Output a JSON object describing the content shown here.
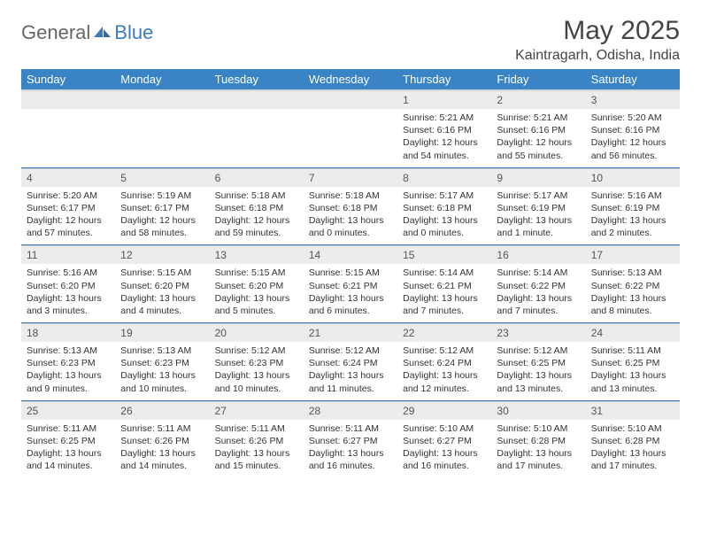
{
  "logo": {
    "part1": "General",
    "part2": "Blue"
  },
  "title": "May 2025",
  "location": "Kaintragarh, Odisha, India",
  "colors": {
    "header_bg": "#3a84c5",
    "header_text": "#ffffff",
    "daynum_bg": "#ececec",
    "separator": "#3a7cbf",
    "body_text": "#333333",
    "logo_gray": "#666666",
    "logo_blue": "#3a7cbf"
  },
  "weekdays": [
    "Sunday",
    "Monday",
    "Tuesday",
    "Wednesday",
    "Thursday",
    "Friday",
    "Saturday"
  ],
  "weeks": [
    {
      "nums": [
        "",
        "",
        "",
        "",
        "1",
        "2",
        "3"
      ],
      "cells": [
        null,
        null,
        null,
        null,
        {
          "sunrise": "5:21 AM",
          "sunset": "6:16 PM",
          "daylight": "12 hours and 54 minutes."
        },
        {
          "sunrise": "5:21 AM",
          "sunset": "6:16 PM",
          "daylight": "12 hours and 55 minutes."
        },
        {
          "sunrise": "5:20 AM",
          "sunset": "6:16 PM",
          "daylight": "12 hours and 56 minutes."
        }
      ]
    },
    {
      "nums": [
        "4",
        "5",
        "6",
        "7",
        "8",
        "9",
        "10"
      ],
      "cells": [
        {
          "sunrise": "5:20 AM",
          "sunset": "6:17 PM",
          "daylight": "12 hours and 57 minutes."
        },
        {
          "sunrise": "5:19 AM",
          "sunset": "6:17 PM",
          "daylight": "12 hours and 58 minutes."
        },
        {
          "sunrise": "5:18 AM",
          "sunset": "6:18 PM",
          "daylight": "12 hours and 59 minutes."
        },
        {
          "sunrise": "5:18 AM",
          "sunset": "6:18 PM",
          "daylight": "13 hours and 0 minutes."
        },
        {
          "sunrise": "5:17 AM",
          "sunset": "6:18 PM",
          "daylight": "13 hours and 0 minutes."
        },
        {
          "sunrise": "5:17 AM",
          "sunset": "6:19 PM",
          "daylight": "13 hours and 1 minute."
        },
        {
          "sunrise": "5:16 AM",
          "sunset": "6:19 PM",
          "daylight": "13 hours and 2 minutes."
        }
      ]
    },
    {
      "nums": [
        "11",
        "12",
        "13",
        "14",
        "15",
        "16",
        "17"
      ],
      "cells": [
        {
          "sunrise": "5:16 AM",
          "sunset": "6:20 PM",
          "daylight": "13 hours and 3 minutes."
        },
        {
          "sunrise": "5:15 AM",
          "sunset": "6:20 PM",
          "daylight": "13 hours and 4 minutes."
        },
        {
          "sunrise": "5:15 AM",
          "sunset": "6:20 PM",
          "daylight": "13 hours and 5 minutes."
        },
        {
          "sunrise": "5:15 AM",
          "sunset": "6:21 PM",
          "daylight": "13 hours and 6 minutes."
        },
        {
          "sunrise": "5:14 AM",
          "sunset": "6:21 PM",
          "daylight": "13 hours and 7 minutes."
        },
        {
          "sunrise": "5:14 AM",
          "sunset": "6:22 PM",
          "daylight": "13 hours and 7 minutes."
        },
        {
          "sunrise": "5:13 AM",
          "sunset": "6:22 PM",
          "daylight": "13 hours and 8 minutes."
        }
      ]
    },
    {
      "nums": [
        "18",
        "19",
        "20",
        "21",
        "22",
        "23",
        "24"
      ],
      "cells": [
        {
          "sunrise": "5:13 AM",
          "sunset": "6:23 PM",
          "daylight": "13 hours and 9 minutes."
        },
        {
          "sunrise": "5:13 AM",
          "sunset": "6:23 PM",
          "daylight": "13 hours and 10 minutes."
        },
        {
          "sunrise": "5:12 AM",
          "sunset": "6:23 PM",
          "daylight": "13 hours and 10 minutes."
        },
        {
          "sunrise": "5:12 AM",
          "sunset": "6:24 PM",
          "daylight": "13 hours and 11 minutes."
        },
        {
          "sunrise": "5:12 AM",
          "sunset": "6:24 PM",
          "daylight": "13 hours and 12 minutes."
        },
        {
          "sunrise": "5:12 AM",
          "sunset": "6:25 PM",
          "daylight": "13 hours and 13 minutes."
        },
        {
          "sunrise": "5:11 AM",
          "sunset": "6:25 PM",
          "daylight": "13 hours and 13 minutes."
        }
      ]
    },
    {
      "nums": [
        "25",
        "26",
        "27",
        "28",
        "29",
        "30",
        "31"
      ],
      "cells": [
        {
          "sunrise": "5:11 AM",
          "sunset": "6:25 PM",
          "daylight": "13 hours and 14 minutes."
        },
        {
          "sunrise": "5:11 AM",
          "sunset": "6:26 PM",
          "daylight": "13 hours and 14 minutes."
        },
        {
          "sunrise": "5:11 AM",
          "sunset": "6:26 PM",
          "daylight": "13 hours and 15 minutes."
        },
        {
          "sunrise": "5:11 AM",
          "sunset": "6:27 PM",
          "daylight": "13 hours and 16 minutes."
        },
        {
          "sunrise": "5:10 AM",
          "sunset": "6:27 PM",
          "daylight": "13 hours and 16 minutes."
        },
        {
          "sunrise": "5:10 AM",
          "sunset": "6:28 PM",
          "daylight": "13 hours and 17 minutes."
        },
        {
          "sunrise": "5:10 AM",
          "sunset": "6:28 PM",
          "daylight": "13 hours and 17 minutes."
        }
      ]
    }
  ],
  "labels": {
    "sunrise": "Sunrise:",
    "sunset": "Sunset:",
    "daylight": "Daylight:"
  }
}
